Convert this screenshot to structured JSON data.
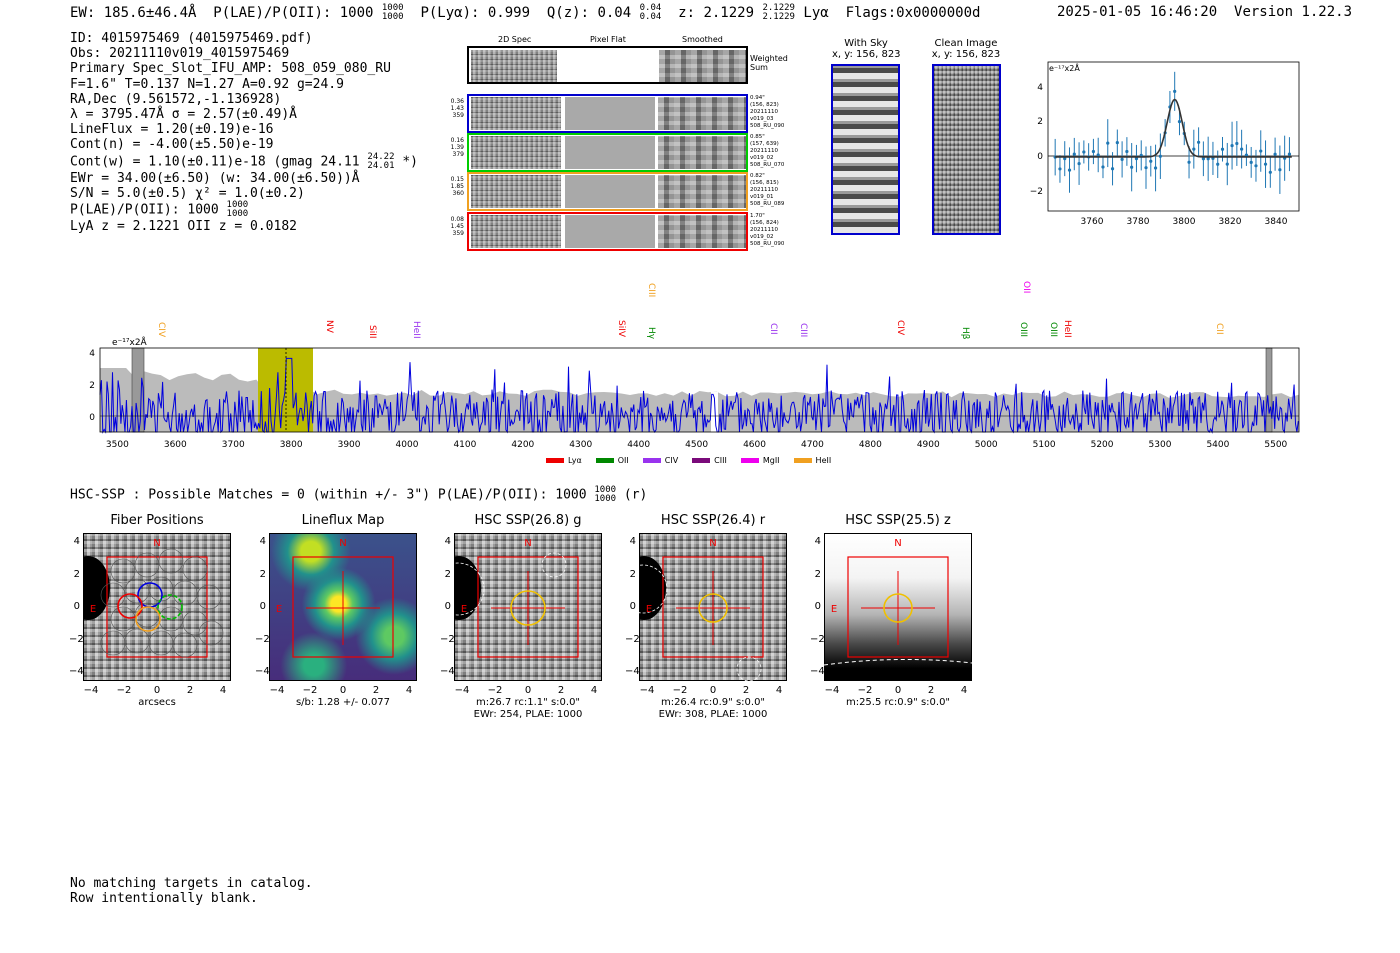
{
  "header": {
    "ew": "EW: 185.6±46.4Å",
    "plae_label": "P(LAE)/P(OII): 1000",
    "plae_hi": "1000",
    "plae_lo": "1000",
    "plya": "P(Lyα): 0.999",
    "qz": "Q(z): 0.04",
    "qz_hi": "0.04",
    "qz_lo": "0.04",
    "z": "z: 2.1229",
    "z_hi": "2.1229",
    "z_lo": "2.1229",
    "z_line": "Lyα",
    "flags": "Flags:0x0000000d",
    "timestamp": "2025-01-05 16:46:20",
    "version": "Version 1.22.3"
  },
  "info": {
    "id": "ID: 4015975469 (4015975469.pdf)",
    "obs": "Obs: 20211110v019_4015975469",
    "primary": "Primary Spec_Slot_IFU_AMP: 508_059_080_RU",
    "params": "F=1.6\"  T=0.137  N=1.27  A=0.92  g=24.9",
    "radec": "RA,Dec (9.561572,-1.136928)",
    "lambda": "λ = 3795.47Å  σ = 2.57(±0.49)Å",
    "lineflux": "LineFlux = 1.20(±0.19)e-16",
    "contn": "Cont(n) = -4.00(±5.50)e-19",
    "contw": "Cont(w) = 1.10(±0.11)e-18 (gmag 24.11",
    "gmag_hi": "24.22",
    "gmag_lo": "24.01",
    "contw_end": "*)",
    "ewr": "EWr = 34.00(±6.50) (w: 34.00(±6.50))Å",
    "sn": "S/N = 5.0(±0.5)  χ² = 1.0(±0.2)",
    "plae": "P(LAE)/P(OII): 1000",
    "plae_hi": "1000",
    "plae_lo": "1000",
    "lya_z": "LyA z = 2.1221  OII z = 0.0182"
  },
  "cutouts": {
    "col_2d": "2D Spec",
    "col_flat": "Pixel Flat",
    "col_smooth": "Smoothed",
    "weighted": "Weighted Sum",
    "rows": [
      {
        "color": "#0000cc",
        "left": [
          "0.36",
          "1.43",
          "359"
        ],
        "right": [
          "0.94\"",
          "(156, 823)",
          "20211110",
          "v019_03",
          "508_RU_090"
        ]
      },
      {
        "color": "#00cc00",
        "left": [
          "0.16",
          "1.39",
          "379"
        ],
        "right": [
          "0.85\"",
          "(157, 639)",
          "20211110",
          "v019_02",
          "508_RU_070"
        ]
      },
      {
        "color": "#f0a020",
        "left": [
          "0.15",
          "1.85",
          "360"
        ],
        "right": [
          "0.82\"",
          "(156, 815)",
          "20211110",
          "v019_01",
          "508_RU_089"
        ]
      },
      {
        "color": "#ee0000",
        "left": [
          "0.08",
          "1.45",
          "359"
        ],
        "right": [
          "1.70\"",
          "(156, 824)",
          "20211110",
          "v019_02",
          "508_RU_090"
        ]
      }
    ],
    "with_sky": "With Sky",
    "with_sky_xy": "x, y: 156, 823",
    "clean": "Clean Image",
    "clean_xy": "x, y: 156, 823"
  },
  "zoom_plot": {
    "unit": "e⁻¹⁷x2Å",
    "xticks": [
      "3760",
      "3780",
      "3800",
      "3820",
      "3840"
    ],
    "yticks": [
      "4",
      "2",
      "0",
      "−2"
    ]
  },
  "full_spectrum": {
    "unit": "e⁻¹⁷x2Å",
    "yticks": [
      "4",
      "2",
      "0"
    ],
    "xticks": [
      "3500",
      "3600",
      "3700",
      "3800",
      "3900",
      "4000",
      "4100",
      "4200",
      "4300",
      "4400",
      "4500",
      "4600",
      "4700",
      "4800",
      "4900",
      "5000",
      "5100",
      "5200",
      "5300",
      "5400",
      "5500"
    ],
    "lines": [
      {
        "label": "CIV",
        "color": "#f0a020"
      },
      {
        "label": "NV",
        "color": "#ee0000"
      },
      {
        "label": "SiII",
        "color": "#ee0000"
      },
      {
        "label": "HeII",
        "color": "#9933ee"
      },
      {
        "label": "SiIV",
        "color": "#ee0000"
      },
      {
        "label": "CIII",
        "color": "#f0a020"
      },
      {
        "label": "Hγ",
        "color": "#008800"
      },
      {
        "label": "CII",
        "color": "#9933ee"
      },
      {
        "label": "CIII",
        "color": "#9933ee"
      },
      {
        "label": "CIV",
        "color": "#ee0000"
      },
      {
        "label": "Hβ",
        "color": "#008800"
      },
      {
        "label": "OII",
        "color": "#ee00ee"
      },
      {
        "label": "OIII",
        "color": "#008800"
      },
      {
        "label": "OIII",
        "color": "#008800"
      },
      {
        "label": "HeII",
        "color": "#ee0000"
      },
      {
        "label": "CII",
        "color": "#f0a020"
      }
    ],
    "legend": [
      {
        "label": "Lyα",
        "color": "#ee0000"
      },
      {
        "label": "OII",
        "color": "#008800"
      },
      {
        "label": "CIV",
        "color": "#9933ee"
      },
      {
        "label": "CIII",
        "color": "#7a0a7a"
      },
      {
        "label": "MgII",
        "color": "#ee00ee"
      },
      {
        "label": "HeII",
        "color": "#f0a020"
      }
    ]
  },
  "hsc": {
    "summary": "HSC-SSP : Possible Matches = 0 (within +/- 3\")  P(LAE)/P(OII): 1000",
    "summary_hi": "1000",
    "summary_lo": "1000",
    "summary_end": "(r)",
    "panels": [
      {
        "title": "Fiber Positions",
        "caption1": "arcsecs",
        "caption2": ""
      },
      {
        "title": "Lineflux Map",
        "caption1": "s/b: 1.28 +/- 0.077",
        "caption2": ""
      },
      {
        "title": "HSC SSP(26.8) g",
        "caption1": "m:26.7 rc:1.1\"  s:0.0\"",
        "caption2": "EWr: 254, PLAE: 1000"
      },
      {
        "title": "HSC SSP(26.4) r",
        "caption1": "m:26.4 rc:0.9\"  s:0.0\"",
        "caption2": "EWr: 308, PLAE: 1000"
      },
      {
        "title": "HSC SSP(25.5) z",
        "caption1": "m:25.5 rc:0.9\"  s:0.0\"",
        "caption2": ""
      }
    ],
    "compass_n": "N",
    "compass_e": "E",
    "yticks": [
      "4",
      "2",
      "0",
      "−2",
      "−4"
    ],
    "xticks": [
      "−4",
      "−2",
      "0",
      "2",
      "4"
    ]
  },
  "footer": {
    "line1": "No matching targets in catalog.",
    "line2": "Row intentionally blank."
  }
}
